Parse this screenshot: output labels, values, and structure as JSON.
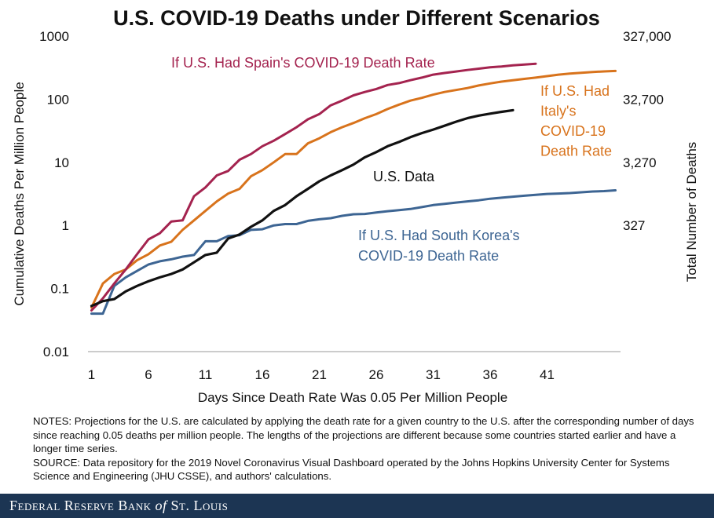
{
  "chart_data": {
    "type": "line",
    "title": "U.S. COVID-19 Deaths under Different Scenarios",
    "xlabel": "Days Since Death Rate Was 0.05 Per Million People",
    "ylabel": "Cumulative Deaths Per Million People",
    "y2label": "Total Number of Deaths",
    "y_scale": "log",
    "ylim": [
      0.01,
      1000
    ],
    "xlim": [
      0,
      47
    ],
    "grid": false,
    "x_ticks": [
      1,
      6,
      11,
      16,
      21,
      26,
      31,
      36,
      41
    ],
    "y_ticks": [
      {
        "value": 1000,
        "label": "1000"
      },
      {
        "value": 100,
        "label": "100"
      },
      {
        "value": 10,
        "label": "10"
      },
      {
        "value": 1,
        "label": "1"
      },
      {
        "value": 0.1,
        "label": "0.1"
      },
      {
        "value": 0.01,
        "label": "0.01"
      }
    ],
    "y2_ticks": [
      {
        "value": 1000,
        "label": "327,000"
      },
      {
        "value": 100,
        "label": "32,700"
      },
      {
        "value": 10,
        "label": "3,270"
      },
      {
        "value": 1,
        "label": "327"
      }
    ],
    "series": [
      {
        "name": "Spain",
        "color": "#a4234f",
        "label_lines": [
          "If U.S. Had Spain's COVID-19 Death Rate"
        ],
        "x": [
          1,
          2,
          3,
          4,
          5,
          6,
          7,
          8,
          9,
          10,
          11,
          12,
          13,
          14,
          15,
          16,
          17,
          18,
          19,
          20,
          21,
          22,
          23,
          24,
          25,
          26,
          27,
          28,
          29,
          30,
          31,
          32,
          33,
          34,
          35,
          36,
          37,
          38,
          39,
          40
        ],
        "y": [
          0.045,
          0.07,
          0.12,
          0.2,
          0.35,
          0.6,
          0.75,
          1.15,
          1.2,
          2.9,
          4,
          6.2,
          7.3,
          11,
          13.5,
          18,
          22,
          28,
          36,
          48,
          58,
          80,
          95,
          115,
          130,
          145,
          168,
          180,
          200,
          220,
          245,
          260,
          275,
          290,
          305,
          320,
          330,
          345,
          355,
          365
        ]
      },
      {
        "name": "Italy",
        "color": "#d8731c",
        "label_lines": [
          "If U.S. Had",
          "Italy's",
          "COVID-19",
          "Death Rate"
        ],
        "x": [
          1,
          2,
          3,
          4,
          5,
          6,
          7,
          8,
          9,
          10,
          11,
          12,
          13,
          14,
          15,
          16,
          17,
          18,
          19,
          20,
          21,
          22,
          23,
          24,
          25,
          26,
          27,
          28,
          29,
          30,
          31,
          32,
          33,
          34,
          35,
          36,
          37,
          38,
          39,
          40,
          41,
          42,
          43,
          44,
          45,
          46,
          47
        ],
        "y": [
          0.05,
          0.12,
          0.17,
          0.2,
          0.28,
          0.35,
          0.48,
          0.55,
          0.85,
          1.2,
          1.7,
          2.4,
          3.2,
          3.8,
          6,
          7.5,
          10,
          13.5,
          13.5,
          20,
          24,
          30,
          36,
          42,
          50,
          58,
          70,
          82,
          95,
          105,
          118,
          130,
          140,
          150,
          165,
          178,
          190,
          200,
          210,
          220,
          232,
          245,
          255,
          262,
          270,
          276,
          280
        ]
      },
      {
        "name": "U.S.",
        "color": "#111111",
        "label_lines": [
          "U.S. Data"
        ],
        "x": [
          1,
          2,
          3,
          4,
          5,
          6,
          7,
          8,
          9,
          10,
          11,
          12,
          13,
          14,
          15,
          16,
          17,
          18,
          19,
          20,
          21,
          22,
          23,
          24,
          25,
          26,
          27,
          28,
          29,
          30,
          31,
          32,
          33,
          34,
          35,
          36,
          37,
          38
        ],
        "y": [
          0.053,
          0.063,
          0.068,
          0.09,
          0.11,
          0.13,
          0.15,
          0.17,
          0.2,
          0.26,
          0.34,
          0.37,
          0.62,
          0.72,
          0.95,
          1.2,
          1.7,
          2.1,
          2.9,
          3.8,
          5,
          6.2,
          7.5,
          9.2,
          12,
          14.5,
          18,
          21,
          25,
          29,
          33,
          38,
          44,
          50,
          55,
          59,
          63,
          67
        ]
      },
      {
        "name": "South Korea",
        "color": "#3d6593",
        "label_lines": [
          "If U.S. Had South Korea's",
          "COVID-19 Death Rate"
        ],
        "x": [
          1,
          2,
          3,
          4,
          5,
          6,
          7,
          8,
          9,
          10,
          11,
          12,
          13,
          14,
          15,
          16,
          17,
          18,
          19,
          20,
          21,
          22,
          23,
          24,
          25,
          26,
          27,
          28,
          29,
          30,
          31,
          32,
          33,
          34,
          35,
          36,
          37,
          38,
          39,
          40,
          41,
          42,
          43,
          44,
          45,
          46,
          47
        ],
        "y": [
          0.04,
          0.04,
          0.11,
          0.15,
          0.19,
          0.24,
          0.27,
          0.29,
          0.32,
          0.34,
          0.56,
          0.56,
          0.68,
          0.7,
          0.85,
          0.87,
          1.0,
          1.05,
          1.05,
          1.18,
          1.25,
          1.3,
          1.42,
          1.5,
          1.52,
          1.6,
          1.68,
          1.75,
          1.82,
          1.95,
          2.1,
          2.2,
          2.3,
          2.4,
          2.5,
          2.65,
          2.75,
          2.85,
          2.95,
          3.05,
          3.15,
          3.2,
          3.25,
          3.35,
          3.45,
          3.5,
          3.6
        ]
      }
    ]
  },
  "notes": "NOTES: Projections for the U.S. are calculated by applying the death rate for a given country to the U.S. after the corresponding number of days since reaching 0.05 deaths per million people. The lengths of the projections are different because some countries started earlier and have a longer time series.",
  "source": "SOURCE: Data repository for the 2019 Novel Coronavirus Visual Dashboard operated by the Johns Hopkins University Center for Systems Science and Engineering (JHU CSSE), and authors' calculations.",
  "footer": {
    "brand_pre": "Federal Reserve Bank",
    "brand_of": "of",
    "brand_post": "St. Louis"
  }
}
